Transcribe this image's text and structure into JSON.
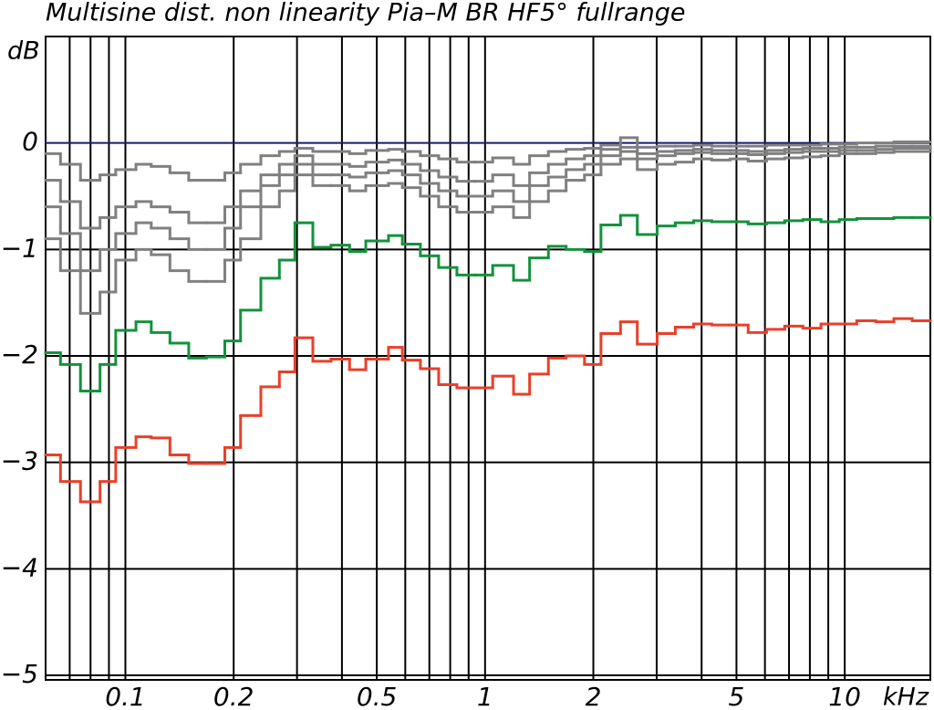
{
  "chart_data": {
    "type": "step",
    "title": "Multisine dist. non linearity Pia–M BR HF5° fullrange",
    "y_label": "dB",
    "x_label": "kHz",
    "log_x": true,
    "grid": true,
    "zero_line_color": "#1c1a6a",
    "xlim": [
      0.06,
      17.3
    ],
    "ylim": [
      -5,
      1
    ],
    "xticks": [
      0.1,
      0.2,
      0.5,
      1,
      2,
      5,
      10
    ],
    "xminor": [
      0.07,
      0.08,
      0.09,
      0.3,
      0.4,
      0.6,
      0.7,
      0.8,
      0.9,
      3,
      4,
      6,
      7,
      8,
      9
    ],
    "yticks": [
      0,
      {
        "value": -1,
        "label": "−1"
      },
      {
        "value": -2,
        "label": "−2"
      },
      {
        "value": -3,
        "label": "−3"
      },
      {
        "value": -4,
        "label": "−4"
      },
      {
        "value": -5,
        "label": "−5"
      }
    ],
    "x": [
      0.06,
      0.066,
      0.075,
      0.085,
      0.094,
      0.107,
      0.118,
      0.133,
      0.15,
      0.168,
      0.189,
      0.209,
      0.238,
      0.268,
      0.296,
      0.332,
      0.373,
      0.42,
      0.466,
      0.539,
      0.589,
      0.661,
      0.743,
      0.835,
      0.938,
      1.05,
      1.2,
      1.33,
      1.5,
      1.68,
      1.89,
      2.1,
      2.38,
      2.65,
      3.01,
      3.38,
      3.8,
      4.27,
      4.8,
      5.39,
      6.06,
      6.81,
      7.65,
      8.59,
      9.66,
      10.8,
      12.2,
      13.7,
      15.4
    ],
    "series": [
      {
        "color": "#808080",
        "values": [
          -0.9,
          -1.2,
          -1.6,
          -1.4,
          -1.1,
          -1.0,
          -1.05,
          -1.2,
          -1.3,
          -1.3,
          -1.1,
          -0.9,
          -0.6,
          -0.45,
          -0.3,
          -0.4,
          -0.4,
          -0.45,
          -0.4,
          -0.38,
          -0.42,
          -0.5,
          -0.6,
          -0.65,
          -0.65,
          -0.6,
          -0.7,
          -0.55,
          -0.45,
          -0.35,
          -0.3,
          -0.2,
          -0.15,
          -0.25,
          -0.2,
          -0.18,
          -0.15,
          -0.16,
          -0.15,
          -0.17,
          -0.15,
          -0.14,
          -0.13,
          -0.12,
          -0.1,
          -0.1,
          -0.09,
          -0.08,
          -0.08
        ]
      },
      {
        "color": "#808080",
        "values": [
          -0.6,
          -0.85,
          -1.2,
          -1.0,
          -0.85,
          -0.75,
          -0.8,
          -0.9,
          -1.0,
          -1.0,
          -0.8,
          -0.6,
          -0.4,
          -0.3,
          -0.2,
          -0.3,
          -0.3,
          -0.32,
          -0.28,
          -0.26,
          -0.3,
          -0.38,
          -0.45,
          -0.5,
          -0.5,
          -0.45,
          -0.55,
          -0.4,
          -0.32,
          -0.25,
          -0.2,
          -0.12,
          -0.08,
          -0.15,
          -0.12,
          -0.1,
          -0.09,
          -0.1,
          -0.1,
          -0.11,
          -0.1,
          -0.09,
          -0.08,
          -0.08,
          -0.07,
          -0.07,
          -0.06,
          -0.05,
          -0.05
        ]
      },
      {
        "color": "#808080",
        "values": [
          -0.35,
          -0.55,
          -0.8,
          -0.7,
          -0.6,
          -0.55,
          -0.6,
          -0.65,
          -0.75,
          -0.75,
          -0.6,
          -0.45,
          -0.3,
          -0.2,
          -0.12,
          -0.2,
          -0.2,
          -0.22,
          -0.18,
          -0.16,
          -0.2,
          -0.26,
          -0.32,
          -0.36,
          -0.36,
          -0.3,
          -0.4,
          -0.28,
          -0.2,
          -0.15,
          -0.12,
          -0.06,
          -0.04,
          -0.1,
          -0.08,
          -0.07,
          -0.06,
          -0.07,
          -0.07,
          -0.08,
          -0.07,
          -0.06,
          -0.05,
          -0.05,
          -0.04,
          -0.04,
          -0.03,
          -0.03,
          -0.03
        ]
      },
      {
        "color": "#808080",
        "values": [
          -0.1,
          -0.2,
          -0.35,
          -0.3,
          -0.25,
          -0.2,
          -0.22,
          -0.28,
          -0.35,
          -0.35,
          -0.28,
          -0.2,
          -0.12,
          -0.08,
          -0.05,
          -0.08,
          -0.08,
          -0.1,
          -0.07,
          -0.06,
          -0.08,
          -0.12,
          -0.15,
          -0.18,
          -0.18,
          -0.14,
          -0.2,
          -0.12,
          -0.08,
          -0.06,
          -0.05,
          -0.02,
          0.05,
          -0.04,
          -0.03,
          -0.03,
          -0.02,
          -0.03,
          -0.03,
          -0.03,
          -0.02,
          -0.02,
          -0.02,
          -0.01,
          -0.01,
          0,
          0,
          0.01,
          0.01
        ]
      },
      {
        "color": "#14923c",
        "values": [
          -1.97,
          -2.08,
          -2.33,
          -2.08,
          -1.76,
          -1.68,
          -1.78,
          -1.88,
          -2.02,
          -2.01,
          -1.86,
          -1.57,
          -1.27,
          -1.1,
          -0.75,
          -0.98,
          -0.96,
          -1.02,
          -0.92,
          -0.87,
          -0.95,
          -1.06,
          -1.17,
          -1.24,
          -1.24,
          -1.15,
          -1.29,
          -1.08,
          -0.97,
          -1.0,
          -1.02,
          -0.77,
          -0.68,
          -0.86,
          -0.78,
          -0.75,
          -0.73,
          -0.74,
          -0.74,
          -0.76,
          -0.75,
          -0.73,
          -0.72,
          -0.74,
          -0.72,
          -0.71,
          -0.71,
          -0.7,
          -0.7
        ]
      },
      {
        "color": "#e8402a",
        "values": [
          -2.93,
          -3.18,
          -3.37,
          -3.18,
          -2.86,
          -2.76,
          -2.77,
          -2.93,
          -3.01,
          -3.01,
          -2.86,
          -2.56,
          -2.29,
          -2.15,
          -1.83,
          -2.05,
          -2.03,
          -2.13,
          -2.03,
          -1.92,
          -2.04,
          -2.12,
          -2.27,
          -2.3,
          -2.3,
          -2.19,
          -2.36,
          -2.17,
          -2.02,
          -2.0,
          -2.08,
          -1.79,
          -1.68,
          -1.89,
          -1.79,
          -1.73,
          -1.7,
          -1.71,
          -1.71,
          -1.78,
          -1.75,
          -1.72,
          -1.74,
          -1.7,
          -1.7,
          -1.67,
          -1.68,
          -1.65,
          -1.67
        ]
      }
    ]
  }
}
